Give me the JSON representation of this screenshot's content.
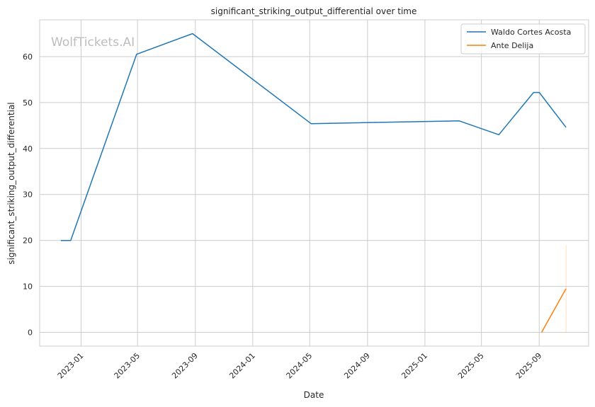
{
  "watermark": "WolfTickets.AI",
  "chart_data": {
    "type": "line",
    "title": "significant_striking_output_differential over time",
    "xlabel": "Date",
    "ylabel": "significant_striking_output_differential",
    "x_axis_type": "date",
    "xlim": [
      "2022-10-05",
      "2025-12-15"
    ],
    "ylim": [
      -3,
      68
    ],
    "x_ticks": [
      "2023-01-01",
      "2023-05-01",
      "2023-09-01",
      "2024-01-01",
      "2024-05-01",
      "2024-09-01",
      "2025-01-01",
      "2025-05-01",
      "2025-09-01"
    ],
    "x_tick_labels": [
      "2023-01",
      "2023-05",
      "2023-09",
      "2024-01",
      "2024-05",
      "2024-09",
      "2025-01",
      "2025-05",
      "2025-09"
    ],
    "y_ticks": [
      0,
      10,
      20,
      30,
      40,
      50,
      60
    ],
    "y_tick_labels": [
      "0",
      "10",
      "20",
      "30",
      "40",
      "50",
      "60"
    ],
    "grid": true,
    "legend_position": "top-right",
    "series": [
      {
        "name": "Waldo Cortes Acosta",
        "color": "#1f77b4",
        "points": [
          {
            "x": "2022-11-19",
            "y": 20.0
          },
          {
            "x": "2022-12-10",
            "y": 20.0
          },
          {
            "x": "2023-04-29",
            "y": 60.5
          },
          {
            "x": "2023-08-26",
            "y": 65.0
          },
          {
            "x": "2024-05-04",
            "y": 45.4
          },
          {
            "x": "2025-03-15",
            "y": 46.0
          },
          {
            "x": "2025-06-07",
            "y": 43.0
          },
          {
            "x": "2025-08-20",
            "y": 52.2
          },
          {
            "x": "2025-09-01",
            "y": 52.2
          },
          {
            "x": "2025-10-28",
            "y": 44.6
          }
        ]
      },
      {
        "name": "Ante Delija",
        "color": "#ff7f0e",
        "points": [
          {
            "x": "2025-09-06",
            "y": 0.0
          },
          {
            "x": "2025-10-28",
            "y": 9.5
          }
        ],
        "band": {
          "x": "2025-10-28",
          "low": 0.0,
          "high": 19.0
        }
      }
    ]
  }
}
